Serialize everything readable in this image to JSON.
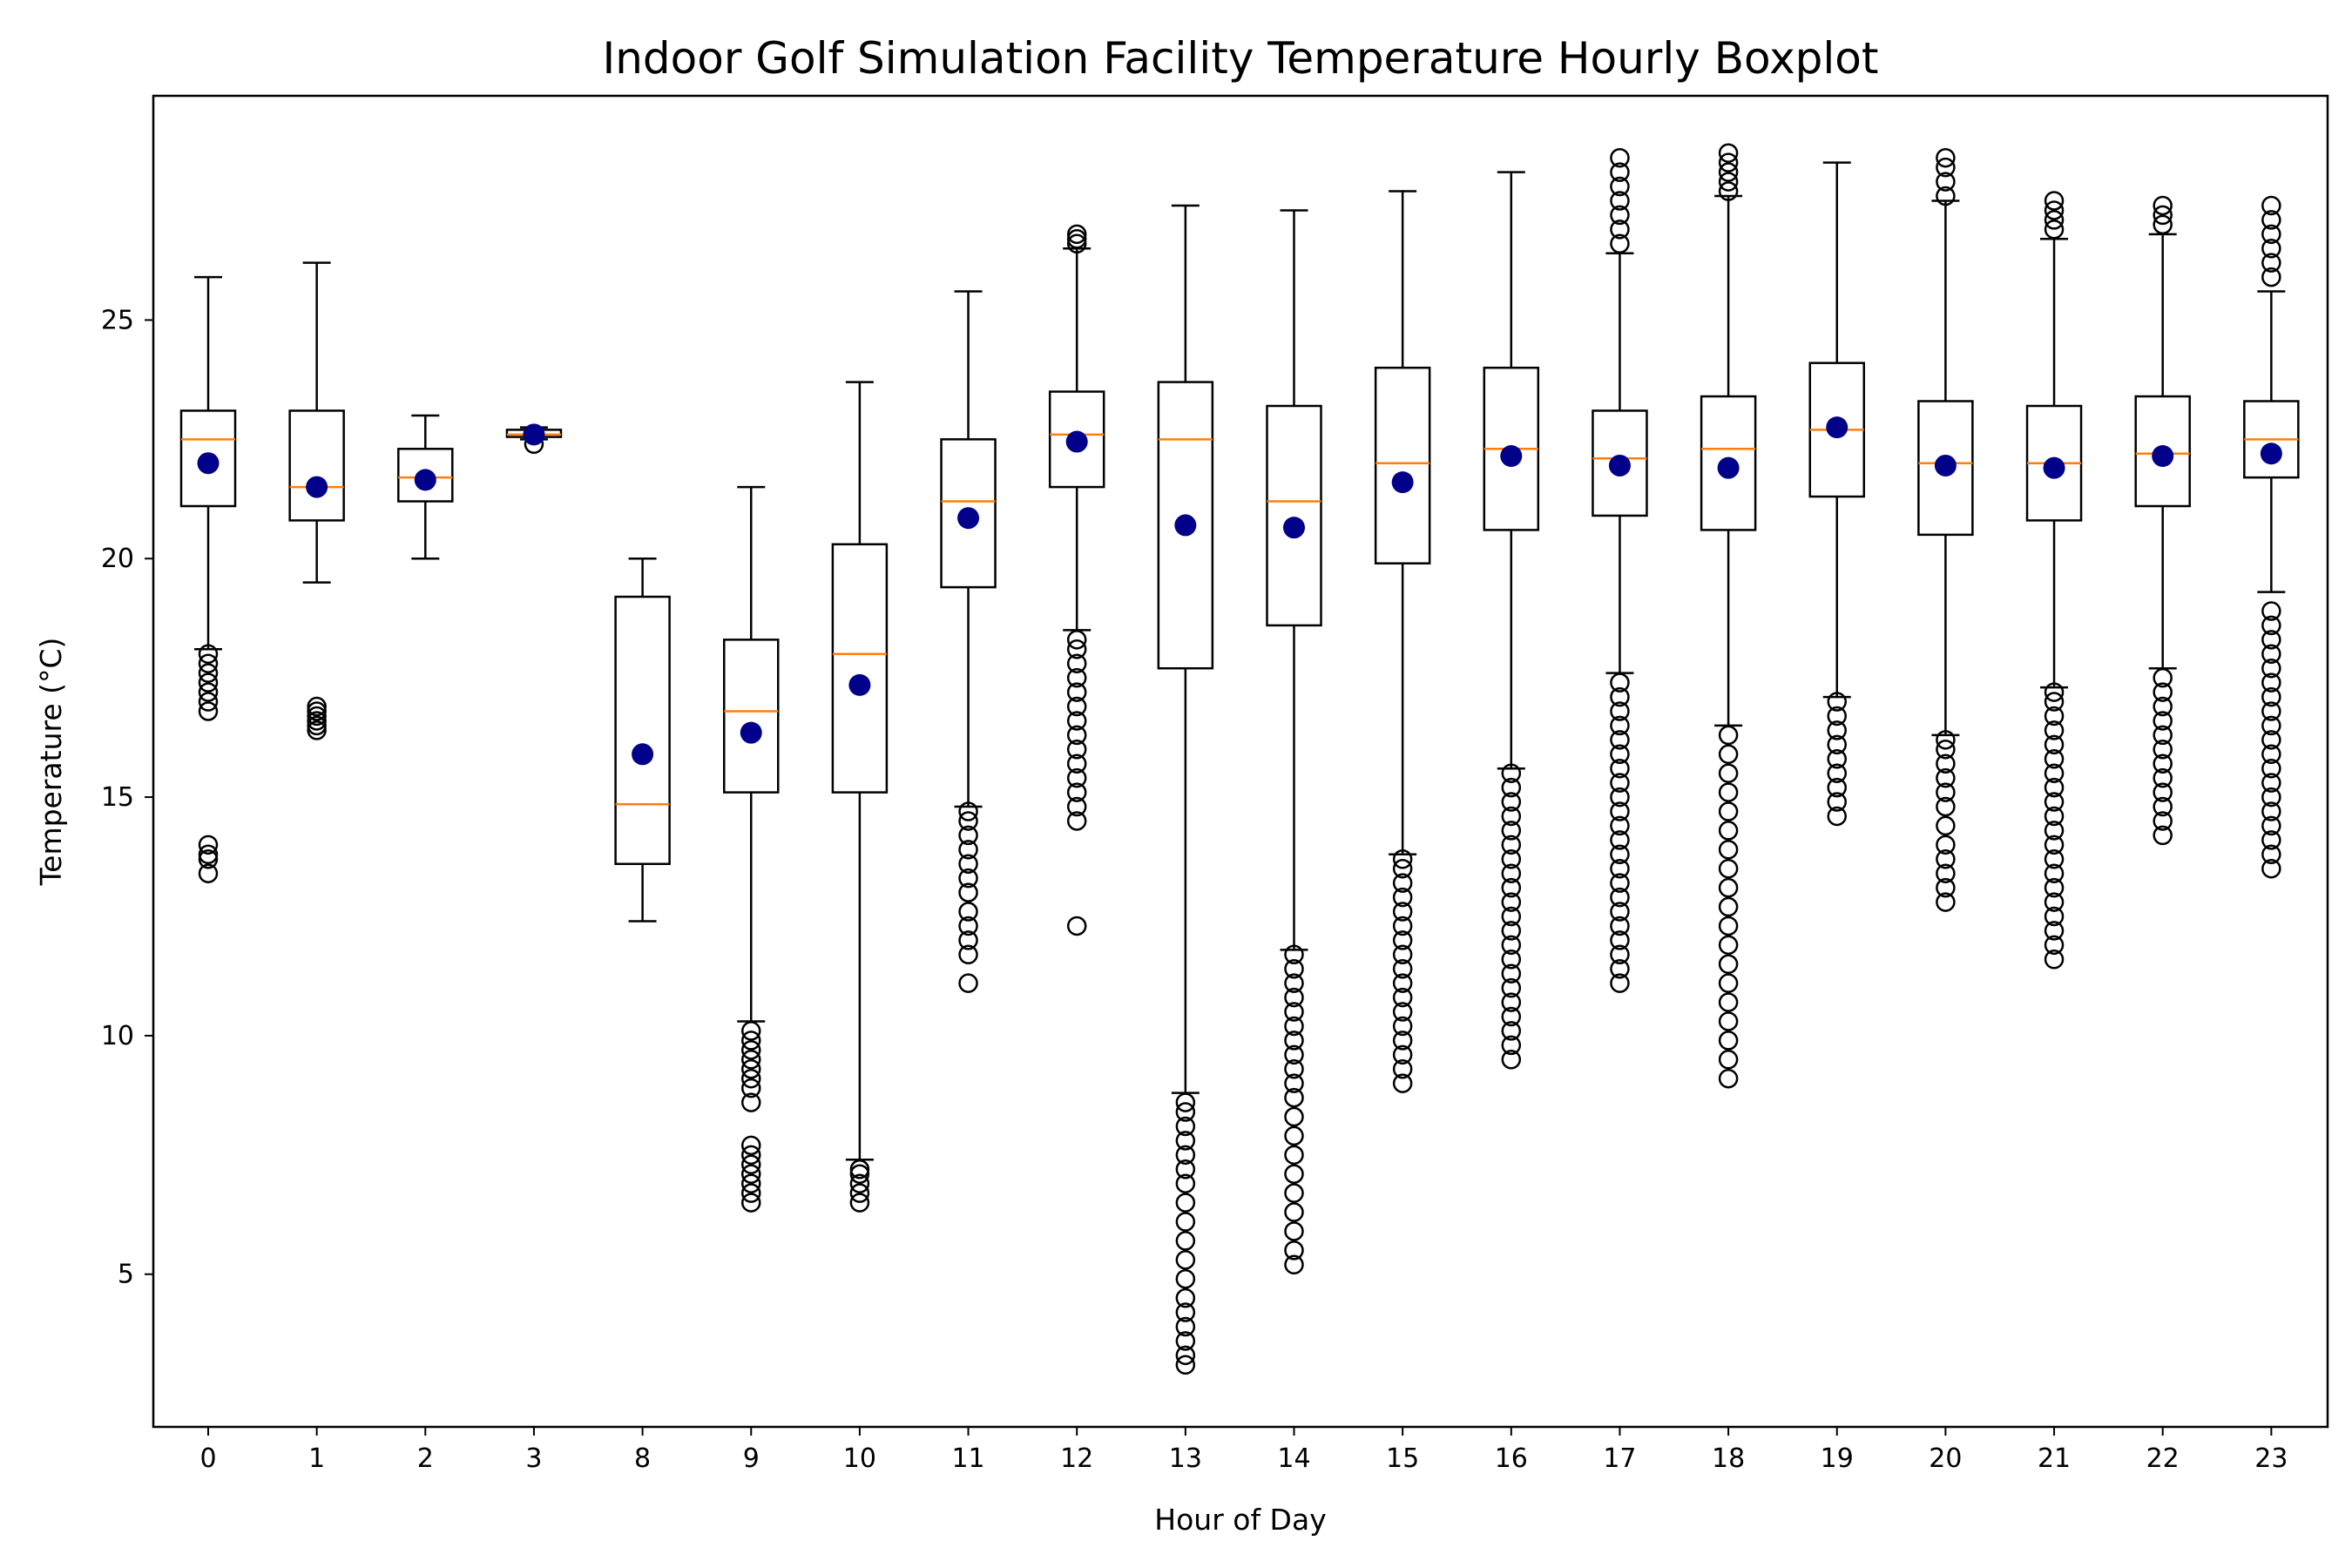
{
  "chart_data": {
    "type": "boxplot",
    "title": "Indoor Golf Simulation Facility Temperature Hourly Boxplot",
    "xlabel": "Hour of Day",
    "ylabel": "Temperature (°C)",
    "ylim": [
      1.8,
      29.7
    ],
    "yticks": [
      5,
      10,
      15,
      20,
      25
    ],
    "grid": false,
    "colors": {
      "box": "#000000",
      "median": "#ff7f0e",
      "mean": "#00008b",
      "outlier": "#000000"
    },
    "categories": [
      "0",
      "1",
      "2",
      "3",
      "8",
      "9",
      "10",
      "11",
      "12",
      "13",
      "14",
      "15",
      "16",
      "17",
      "18",
      "19",
      "20",
      "21",
      "22",
      "23"
    ],
    "boxes": [
      {
        "hour": "0",
        "whislo": 18.1,
        "q1": 21.1,
        "med": 22.5,
        "q3": 23.1,
        "whishi": 25.9,
        "mean": 22.0,
        "fliers": [
          13.4,
          13.7,
          13.8,
          14.0,
          16.8,
          17.0,
          17.2,
          17.4,
          17.6,
          17.8,
          18.0
        ]
      },
      {
        "hour": "1",
        "whislo": 19.5,
        "q1": 20.8,
        "med": 21.5,
        "q3": 23.1,
        "whishi": 26.2,
        "mean": 21.5,
        "fliers": [
          16.4,
          16.5,
          16.6,
          16.7,
          16.8,
          16.9
        ]
      },
      {
        "hour": "2",
        "whislo": 20.0,
        "q1": 21.2,
        "med": 21.7,
        "q3": 22.3,
        "whishi": 23.0,
        "mean": 21.65,
        "fliers": []
      },
      {
        "hour": "3",
        "whislo": 22.5,
        "q1": 22.55,
        "med": 22.6,
        "q3": 22.7,
        "whishi": 22.75,
        "mean": 22.6,
        "fliers": [
          22.4
        ]
      },
      {
        "hour": "8",
        "whislo": 12.4,
        "q1": 13.6,
        "med": 14.85,
        "q3": 19.2,
        "whishi": 20.0,
        "mean": 15.9,
        "fliers": []
      },
      {
        "hour": "9",
        "whislo": 10.3,
        "q1": 15.1,
        "med": 16.8,
        "q3": 18.3,
        "whishi": 21.5,
        "mean": 16.35,
        "fliers": [
          6.5,
          6.7,
          6.9,
          7.1,
          7.3,
          7.5,
          7.7,
          8.6,
          8.9,
          9.1,
          9.3,
          9.5,
          9.7,
          9.9,
          10.1
        ]
      },
      {
        "hour": "10",
        "whislo": 7.4,
        "q1": 15.1,
        "med": 18.0,
        "q3": 20.3,
        "whishi": 23.7,
        "mean": 17.35,
        "fliers": [
          6.5,
          6.7,
          6.9,
          7.1,
          7.2
        ]
      },
      {
        "hour": "11",
        "whislo": 14.8,
        "q1": 19.4,
        "med": 21.2,
        "q3": 22.5,
        "whishi": 25.6,
        "mean": 20.85,
        "fliers": [
          11.1,
          11.7,
          12.0,
          12.3,
          12.6,
          13.0,
          13.3,
          13.6,
          13.9,
          14.2,
          14.5,
          14.7
        ]
      },
      {
        "hour": "12",
        "whislo": 18.5,
        "q1": 21.5,
        "med": 22.6,
        "q3": 23.5,
        "whishi": 26.5,
        "mean": 22.45,
        "fliers": [
          12.3,
          14.5,
          14.8,
          15.1,
          15.4,
          15.7,
          16.0,
          16.3,
          16.6,
          16.9,
          17.2,
          17.5,
          17.8,
          18.1,
          18.3,
          26.6,
          26.7,
          26.8
        ]
      },
      {
        "hour": "13",
        "whislo": 8.8,
        "q1": 17.7,
        "med": 22.5,
        "q3": 23.7,
        "whishi": 27.4,
        "mean": 20.7,
        "fliers": [
          3.1,
          3.3,
          3.6,
          3.9,
          4.2,
          4.5,
          4.9,
          5.3,
          5.7,
          6.1,
          6.5,
          6.9,
          7.2,
          7.5,
          7.8,
          8.1,
          8.4,
          8.6
        ]
      },
      {
        "hour": "14",
        "whislo": 11.8,
        "q1": 18.6,
        "med": 21.2,
        "q3": 23.2,
        "whishi": 27.3,
        "mean": 20.65,
        "fliers": [
          5.2,
          5.5,
          5.9,
          6.3,
          6.7,
          7.1,
          7.5,
          7.9,
          8.3,
          8.7,
          9.0,
          9.3,
          9.6,
          9.9,
          10.2,
          10.5,
          10.8,
          11.1,
          11.4,
          11.7
        ]
      },
      {
        "hour": "15",
        "whislo": 13.8,
        "q1": 19.9,
        "med": 22.0,
        "q3": 24.0,
        "whishi": 27.7,
        "mean": 21.6,
        "fliers": [
          9.0,
          9.3,
          9.6,
          9.9,
          10.2,
          10.5,
          10.8,
          11.1,
          11.4,
          11.7,
          12.0,
          12.3,
          12.6,
          12.9,
          13.2,
          13.5,
          13.7
        ]
      },
      {
        "hour": "16",
        "whislo": 15.6,
        "q1": 20.6,
        "med": 22.3,
        "q3": 24.0,
        "whishi": 28.1,
        "mean": 22.15,
        "fliers": [
          9.5,
          9.8,
          10.1,
          10.4,
          10.7,
          11.0,
          11.3,
          11.6,
          11.9,
          12.2,
          12.5,
          12.8,
          13.1,
          13.4,
          13.7,
          14.0,
          14.3,
          14.6,
          14.9,
          15.2,
          15.5
        ]
      },
      {
        "hour": "17",
        "whislo": 17.6,
        "q1": 20.9,
        "med": 22.1,
        "q3": 23.1,
        "whishi": 26.4,
        "mean": 21.95,
        "fliers": [
          11.1,
          11.4,
          11.7,
          12.0,
          12.3,
          12.6,
          12.9,
          13.2,
          13.5,
          13.8,
          14.1,
          14.4,
          14.7,
          15.0,
          15.3,
          15.6,
          15.9,
          16.2,
          16.5,
          16.8,
          17.1,
          17.4,
          26.6,
          26.9,
          27.2,
          27.5,
          27.8,
          28.1,
          28.4
        ]
      },
      {
        "hour": "18",
        "whislo": 16.5,
        "q1": 20.6,
        "med": 22.3,
        "q3": 23.4,
        "whishi": 27.6,
        "mean": 21.9,
        "fliers": [
          9.1,
          9.5,
          9.9,
          10.3,
          10.7,
          11.1,
          11.5,
          11.9,
          12.3,
          12.7,
          13.1,
          13.5,
          13.9,
          14.3,
          14.7,
          15.1,
          15.5,
          15.9,
          16.3,
          27.7,
          27.9,
          28.1,
          28.3,
          28.5
        ]
      },
      {
        "hour": "19",
        "whislo": 17.1,
        "q1": 21.3,
        "med": 22.7,
        "q3": 24.1,
        "whishi": 28.3,
        "mean": 22.75,
        "fliers": [
          14.6,
          14.9,
          15.2,
          15.5,
          15.8,
          16.1,
          16.4,
          16.7,
          17.0
        ]
      },
      {
        "hour": "20",
        "whislo": 16.3,
        "q1": 20.5,
        "med": 22.0,
        "q3": 23.3,
        "whishi": 27.5,
        "mean": 21.95,
        "fliers": [
          12.8,
          13.1,
          13.4,
          13.7,
          14.0,
          14.4,
          14.8,
          15.1,
          15.4,
          15.7,
          16.0,
          16.2,
          27.6,
          27.9,
          28.2,
          28.4
        ]
      },
      {
        "hour": "21",
        "whislo": 17.3,
        "q1": 20.8,
        "med": 22.0,
        "q3": 23.2,
        "whishi": 26.7,
        "mean": 21.9,
        "fliers": [
          11.6,
          11.9,
          12.2,
          12.5,
          12.8,
          13.1,
          13.4,
          13.7,
          14.0,
          14.3,
          14.6,
          14.9,
          15.2,
          15.5,
          15.8,
          16.1,
          16.4,
          16.7,
          17.0,
          17.2,
          26.9,
          27.1,
          27.3,
          27.5
        ]
      },
      {
        "hour": "22",
        "whislo": 17.7,
        "q1": 21.1,
        "med": 22.2,
        "q3": 23.4,
        "whishi": 26.8,
        "mean": 22.15,
        "fliers": [
          14.2,
          14.5,
          14.8,
          15.1,
          15.4,
          15.7,
          16.0,
          16.3,
          16.6,
          16.9,
          17.2,
          17.5,
          27.0,
          27.2,
          27.4
        ]
      },
      {
        "hour": "23",
        "whislo": 19.3,
        "q1": 21.7,
        "med": 22.5,
        "q3": 23.3,
        "whishi": 25.6,
        "mean": 22.2,
        "fliers": [
          13.5,
          13.8,
          14.1,
          14.4,
          14.7,
          15.0,
          15.3,
          15.6,
          15.9,
          16.2,
          16.5,
          16.8,
          17.1,
          17.4,
          17.7,
          18.0,
          18.3,
          18.6,
          18.9,
          25.9,
          26.2,
          26.5,
          26.8,
          27.1,
          27.4
        ]
      }
    ]
  }
}
